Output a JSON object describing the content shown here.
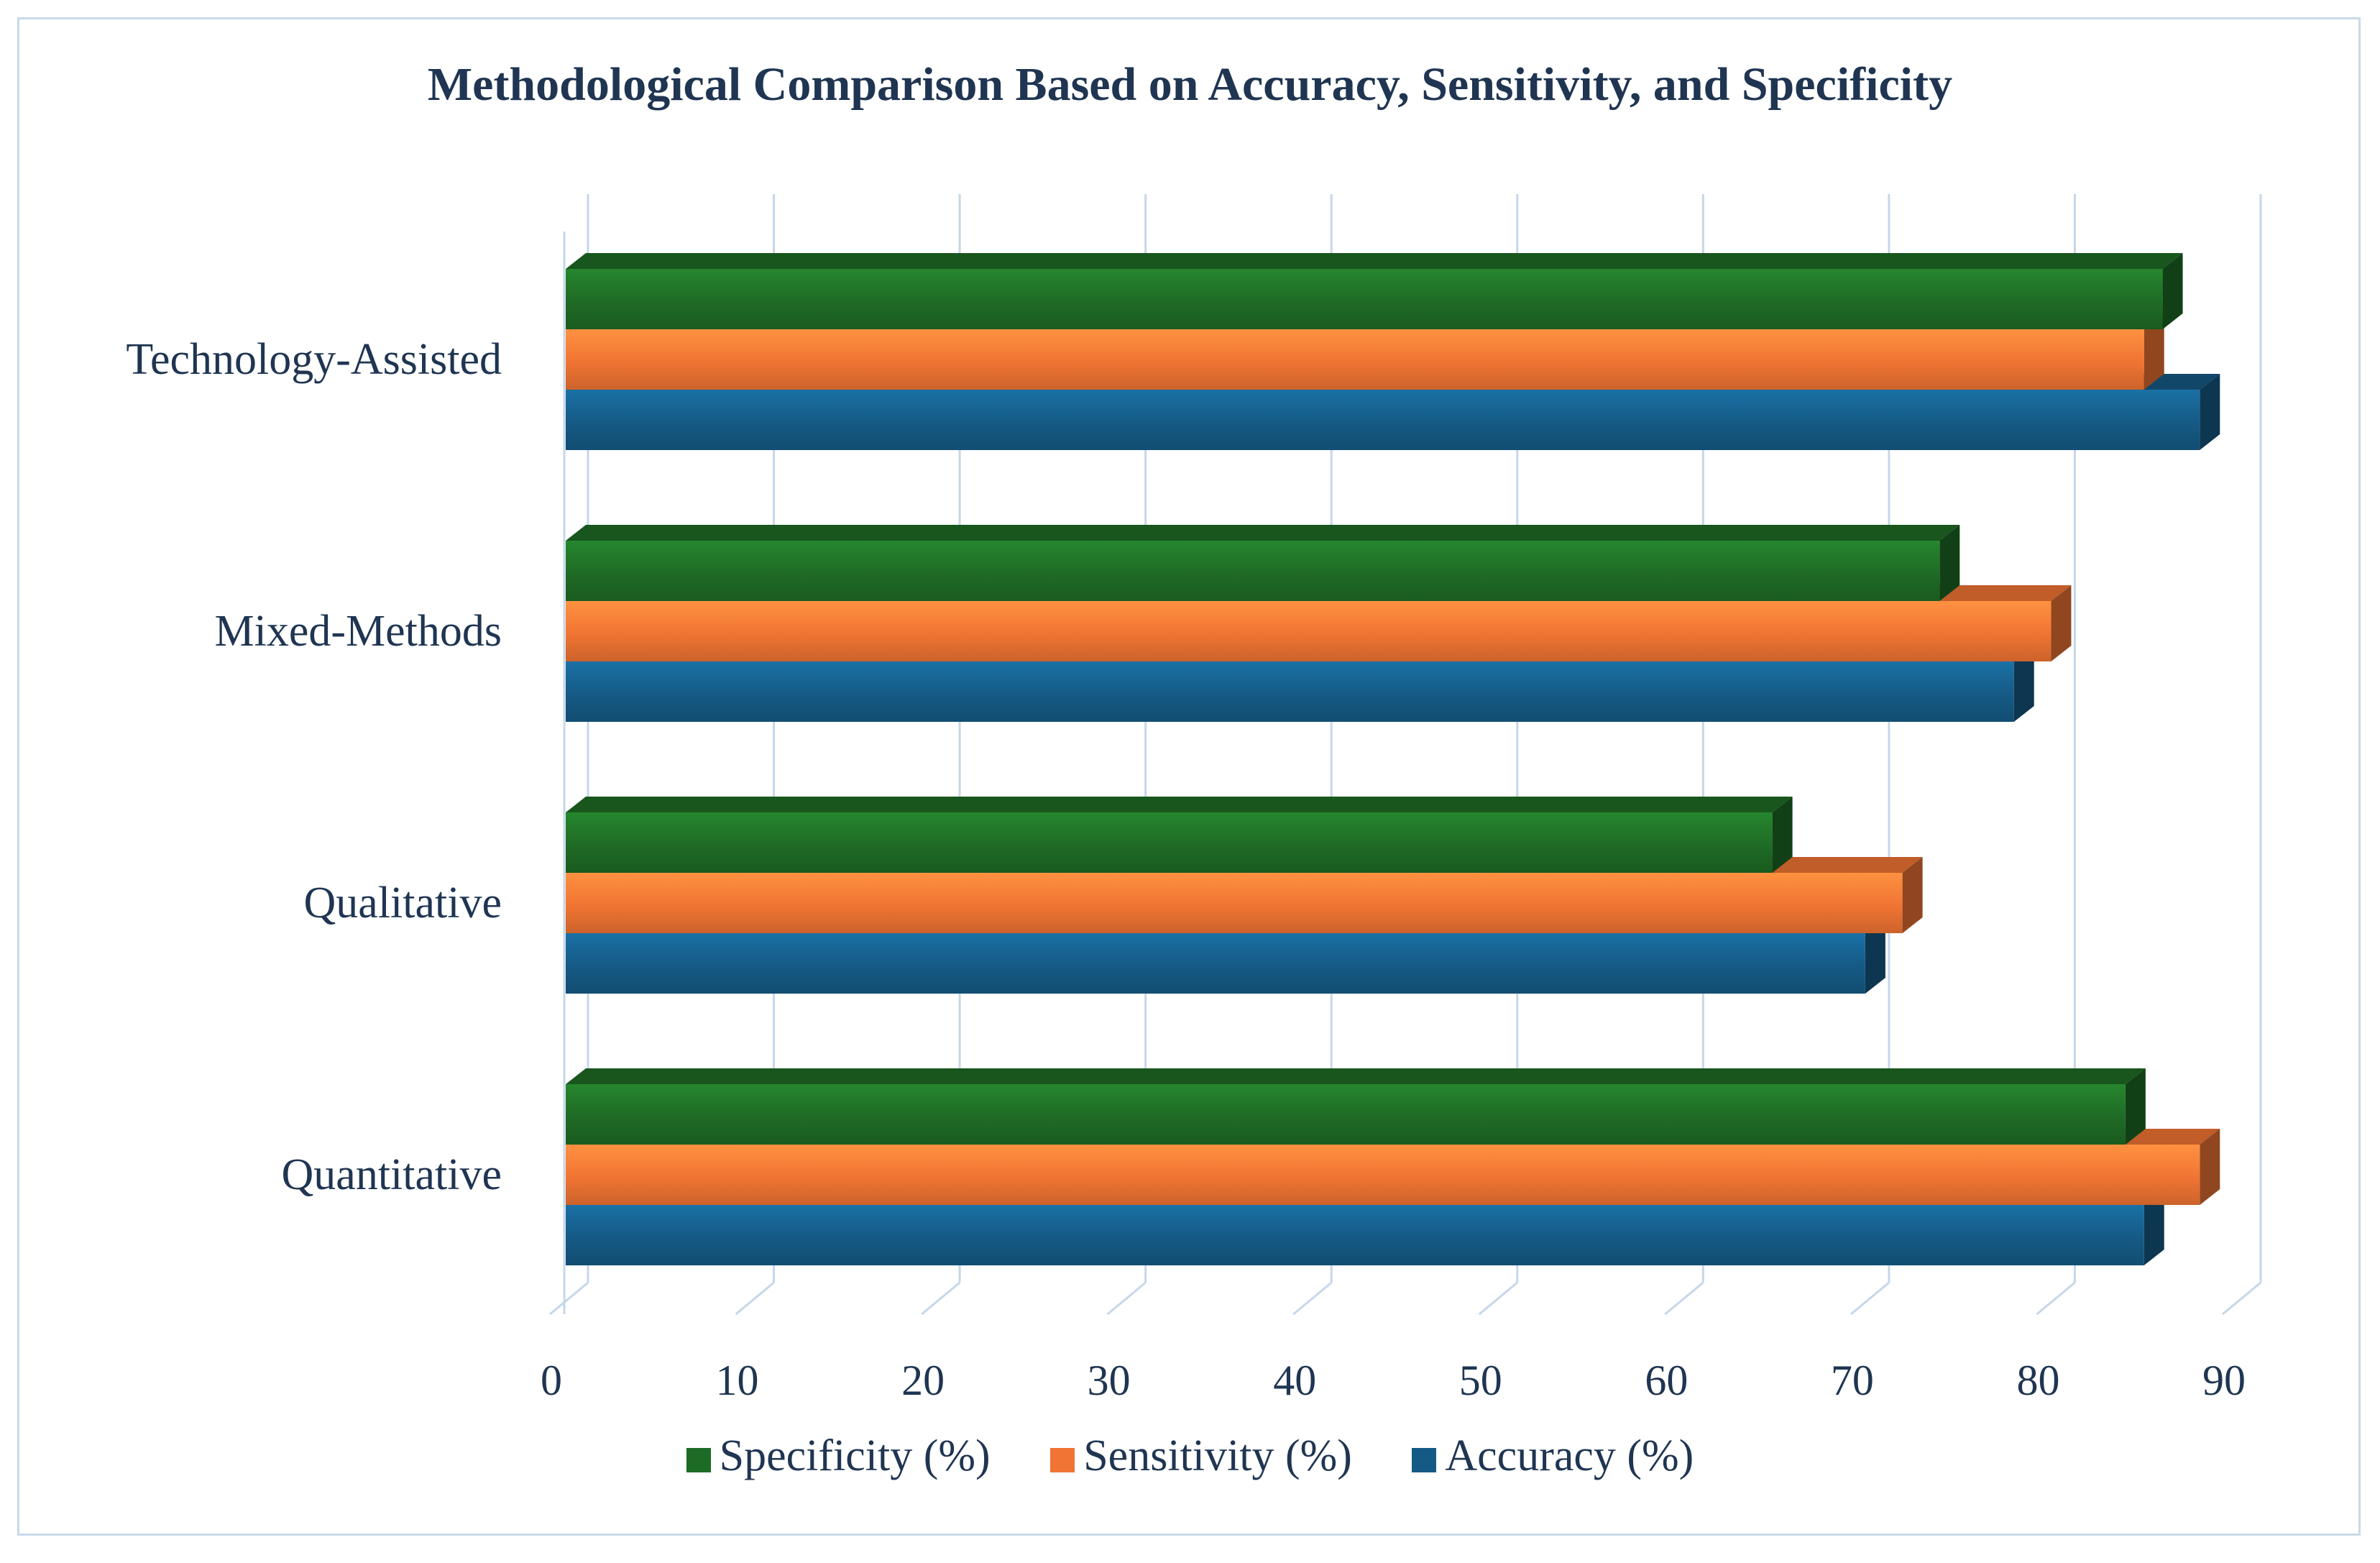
{
  "chart_data": {
    "type": "bar",
    "orientation": "horizontal",
    "title": "Methodological Comparison Based on Accuracy, Sensitivity, and Specificity",
    "categories": [
      "Technology-Assisted",
      "Mixed-Methods",
      "Qualitative",
      "Quantitative"
    ],
    "series": [
      {
        "name": "Specificity (%)",
        "color": "#1e6b25",
        "values": [
          86,
          74,
          65,
          84
        ]
      },
      {
        "name": "Sensitivity (%)",
        "color": "#f07433",
        "values": [
          85,
          80,
          72,
          88
        ]
      },
      {
        "name": "Accuracy (%)",
        "color": "#155a85",
        "values": [
          88,
          78,
          70,
          85
        ]
      }
    ],
    "xlim": [
      0,
      90
    ],
    "xticks": [
      "0",
      "10",
      "20",
      "30",
      "40",
      "50",
      "60",
      "70",
      "80",
      "90"
    ],
    "grid": true,
    "legend_position": "bottom",
    "style": "3d"
  }
}
